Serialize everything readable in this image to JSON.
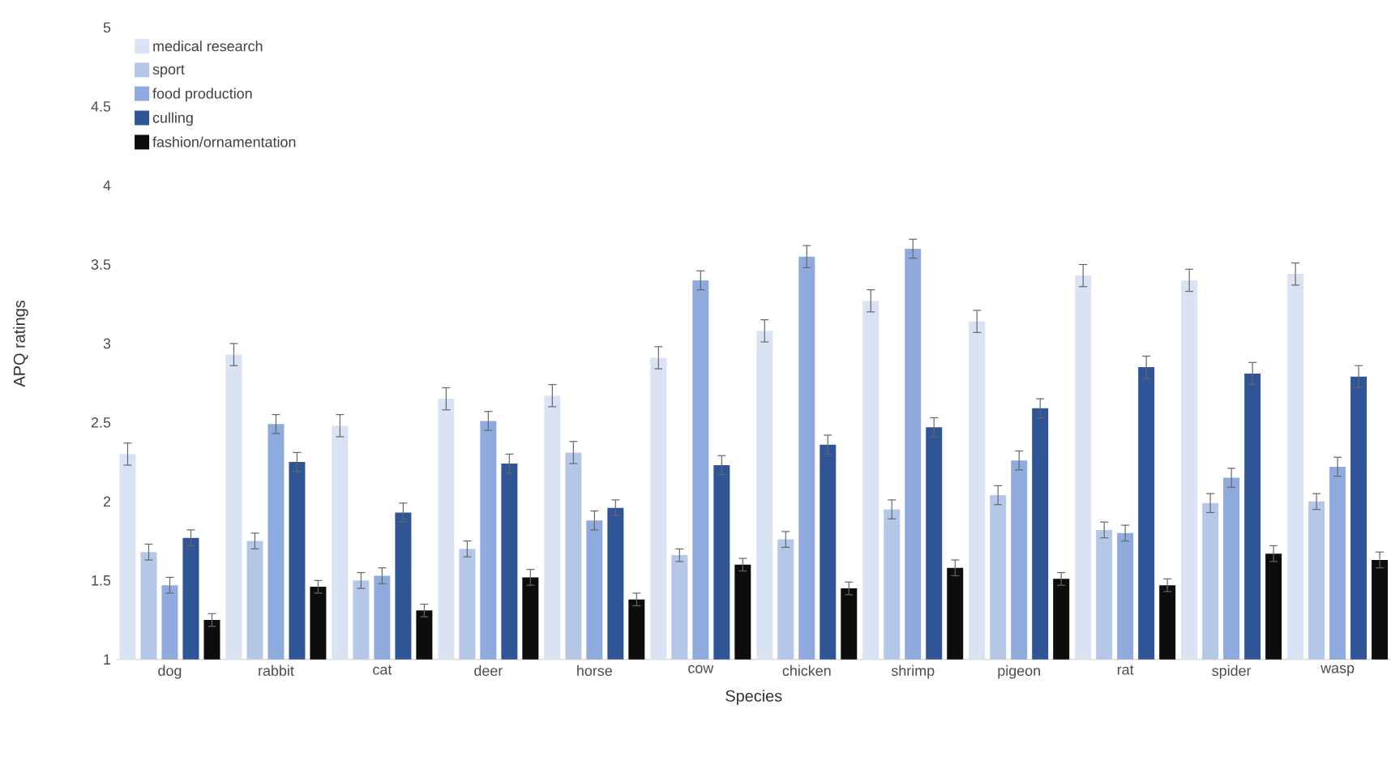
{
  "chart_data": {
    "type": "bar",
    "xlabel": "Species",
    "ylabel": "APQ ratings",
    "categories": [
      "dog",
      "rabbit",
      "cat",
      "deer",
      "horse",
      "cow",
      "chicken",
      "shrimp",
      "pigeon",
      "rat",
      "spider",
      "wasp"
    ],
    "series": [
      {
        "name": "medical research",
        "color": "#dae3f3",
        "values": [
          2.3,
          2.93,
          2.48,
          2.65,
          2.67,
          2.91,
          3.08,
          3.27,
          3.14,
          3.43,
          3.4,
          3.44
        ],
        "errors": [
          0.07,
          0.07,
          0.07,
          0.07,
          0.07,
          0.07,
          0.07,
          0.07,
          0.07,
          0.07,
          0.07,
          0.07
        ]
      },
      {
        "name": "sport",
        "color": "#b4c7e7",
        "values": [
          1.68,
          1.75,
          1.5,
          1.7,
          2.31,
          1.66,
          1.76,
          1.95,
          2.04,
          1.82,
          1.99,
          2.0
        ],
        "errors": [
          0.05,
          0.05,
          0.05,
          0.05,
          0.07,
          0.04,
          0.05,
          0.06,
          0.06,
          0.05,
          0.06,
          0.05
        ]
      },
      {
        "name": "food production",
        "color": "#8faadc",
        "values": [
          1.47,
          2.49,
          1.53,
          2.51,
          1.88,
          3.4,
          3.55,
          3.6,
          2.26,
          1.8,
          2.15,
          2.22
        ],
        "errors": [
          0.05,
          0.06,
          0.05,
          0.06,
          0.06,
          0.06,
          0.07,
          0.06,
          0.06,
          0.05,
          0.06,
          0.06
        ]
      },
      {
        "name": "culling",
        "color": "#2f5597",
        "values": [
          1.77,
          2.25,
          1.93,
          2.24,
          1.96,
          2.23,
          2.36,
          2.47,
          2.59,
          2.85,
          2.81,
          2.79
        ],
        "errors": [
          0.05,
          0.06,
          0.06,
          0.06,
          0.05,
          0.06,
          0.06,
          0.06,
          0.06,
          0.07,
          0.07,
          0.07
        ]
      },
      {
        "name": "fashion/ornamentation",
        "color": "#0d0d0d",
        "values": [
          1.25,
          1.46,
          1.31,
          1.52,
          1.38,
          1.6,
          1.45,
          1.58,
          1.51,
          1.47,
          1.67,
          1.63
        ],
        "errors": [
          0.04,
          0.04,
          0.04,
          0.05,
          0.04,
          0.04,
          0.04,
          0.05,
          0.04,
          0.04,
          0.05,
          0.05
        ]
      }
    ],
    "ylim": [
      1,
      5
    ],
    "yticks": [
      1,
      1.5,
      2,
      2.5,
      3,
      3.5,
      4,
      4.5,
      5
    ],
    "legend": "top left",
    "grid": false
  }
}
